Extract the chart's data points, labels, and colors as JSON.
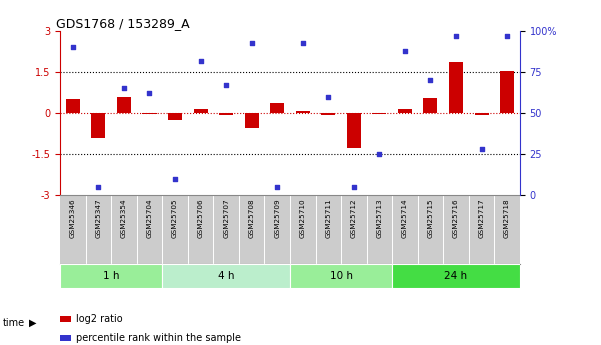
{
  "title": "GDS1768 / 153289_A",
  "samples": [
    "GSM25346",
    "GSM25347",
    "GSM25354",
    "GSM25704",
    "GSM25705",
    "GSM25706",
    "GSM25707",
    "GSM25708",
    "GSM25709",
    "GSM25710",
    "GSM25711",
    "GSM25712",
    "GSM25713",
    "GSM25714",
    "GSM25715",
    "GSM25716",
    "GSM25717",
    "GSM25718"
  ],
  "log2_ratio": [
    0.5,
    -0.9,
    0.6,
    -0.05,
    -0.25,
    0.15,
    -0.08,
    -0.55,
    0.35,
    0.08,
    -0.08,
    -1.3,
    -0.05,
    0.15,
    0.55,
    1.85,
    -0.08,
    1.55
  ],
  "percentile": [
    90,
    5,
    65,
    62,
    10,
    82,
    67,
    93,
    5,
    93,
    60,
    5,
    25,
    88,
    70,
    97,
    28,
    97
  ],
  "groups": [
    {
      "label": "1 h",
      "start": 0,
      "end": 3,
      "color": "#99ee99"
    },
    {
      "label": "4 h",
      "start": 4,
      "end": 8,
      "color": "#bbeecc"
    },
    {
      "label": "10 h",
      "start": 9,
      "end": 12,
      "color": "#99ee99"
    },
    {
      "label": "24 h",
      "start": 13,
      "end": 17,
      "color": "#44dd44"
    }
  ],
  "bar_color": "#cc0000",
  "dot_color": "#3333cc",
  "ylim_left": [
    -3,
    3
  ],
  "ylim_right": [
    0,
    100
  ],
  "yticks_left": [
    -3,
    -1.5,
    0,
    1.5,
    3
  ],
  "yticks_right": [
    0,
    25,
    50,
    75,
    100
  ],
  "background_color": "#ffffff",
  "bar_width": 0.55,
  "label_bg": "#cccccc"
}
